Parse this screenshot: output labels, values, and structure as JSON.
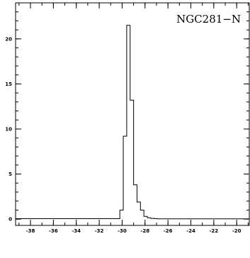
{
  "chart_data": {
    "type": "histogram",
    "title": "NGC281−N",
    "xlabel": "",
    "ylabel": "",
    "xlim": [
      -39.3,
      -18.9
    ],
    "ylim": [
      -0.7,
      24.0
    ],
    "x_ticks": [
      -38,
      -36,
      -34,
      -32,
      -30,
      -28,
      -26,
      -24,
      -22,
      -20
    ],
    "x_tick_labels": [
      "-38",
      "-36",
      "-34",
      "-32",
      "-30",
      "-28",
      "-26",
      "-24",
      "-22",
      "-20"
    ],
    "y_ticks": [
      0,
      5,
      10,
      15,
      20
    ],
    "y_tick_labels": [
      "0",
      "5",
      "10",
      "15",
      "20"
    ],
    "x_minor_step": 1,
    "y_minor_step": 1,
    "grid": false,
    "series": [
      {
        "bin_edges": [
          -39.3,
          -30.2,
          -29.9,
          -29.6,
          -29.3,
          -29.0,
          -28.7,
          -28.4,
          -28.1,
          -27.8,
          -27.5,
          -27.2,
          -26.9,
          -18.9
        ],
        "values": [
          0.05,
          1.0,
          9.2,
          21.5,
          13.2,
          3.8,
          1.9,
          1.0,
          0.3,
          0.15,
          0.08,
          0.05,
          0.03
        ]
      }
    ]
  }
}
